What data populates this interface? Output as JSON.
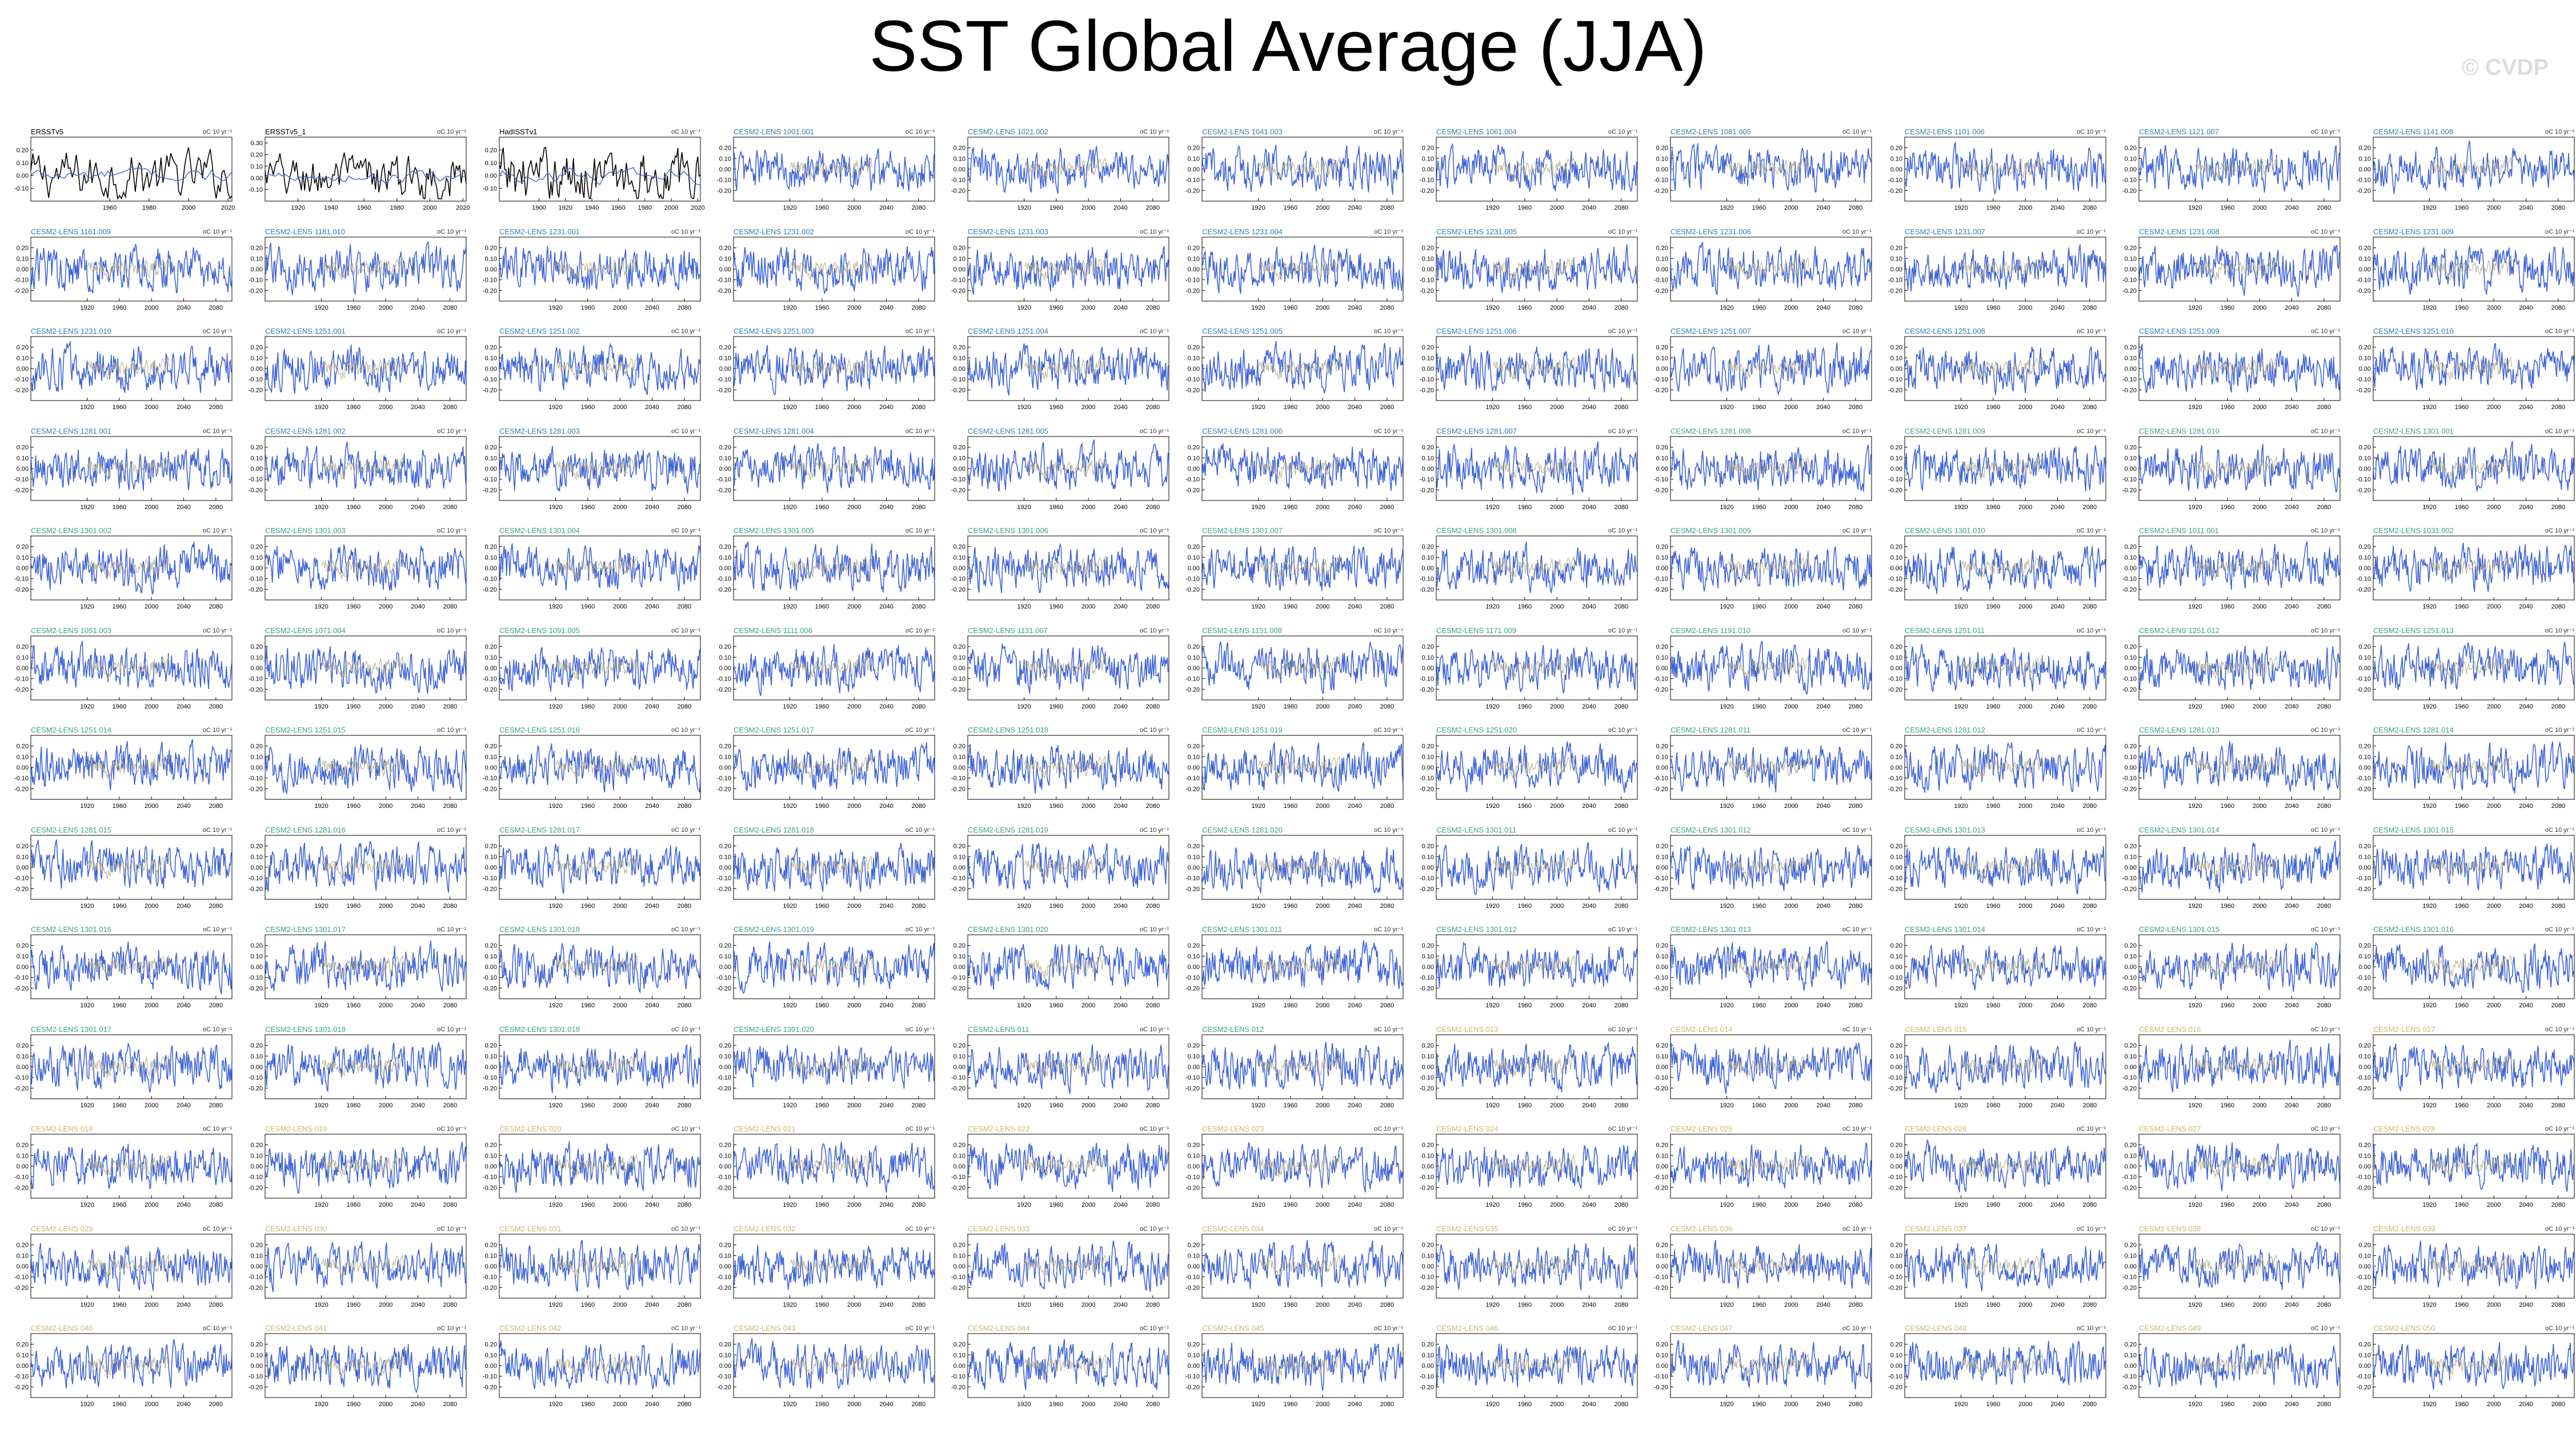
{
  "title": "SST Global Average (JJA)",
  "watermark": "© CVDP",
  "colors": {
    "series": "#3f63d6",
    "trend": "#b8b08a",
    "obs": "#000000",
    "title_obs": "#000000",
    "title_lens_1": "#2e7fb5",
    "title_lens_2": "#3aa08d",
    "title_lens_3": "#c9b86a"
  },
  "units": "oC 10 yr⁻¹",
  "chart_data": {
    "type": "line",
    "grid": false,
    "rows": 13,
    "cols": 11,
    "panels_obs": [
      {
        "name": "ERSSTv5",
        "x_range": [
          1920,
          2022
        ],
        "x_ticks": [
          1960,
          1980,
          2000,
          2020
        ],
        "y_ticks": [
          "0.20",
          "0.10",
          "0.00",
          "-0.10"
        ],
        "ylim": [
          -0.2,
          0.3
        ]
      },
      {
        "name": "ERSSTv5_1",
        "x_range": [
          1900,
          2022
        ],
        "x_ticks": [
          1920,
          1940,
          1960,
          1980,
          2000,
          2020
        ],
        "y_ticks": [
          "0.30",
          "0.20",
          "0.10",
          "0.00",
          "-0.10"
        ],
        "ylim": [
          -0.2,
          0.35
        ]
      },
      {
        "name": "HadISSTv1",
        "x_range": [
          1870,
          2022
        ],
        "x_ticks": [
          1900,
          1920,
          1940,
          1960,
          1980,
          2000,
          2020
        ],
        "y_ticks": [
          "0.20",
          "0.10",
          "0.00",
          "-0.10"
        ],
        "ylim": [
          -0.2,
          0.3
        ]
      }
    ],
    "lens": {
      "x_range": [
        1850,
        2100
      ],
      "x_ticks": [
        1920,
        1960,
        2000,
        2040,
        2080
      ],
      "y_ticks": [
        "0.20",
        "0.10",
        "0.00",
        "-0.10",
        "-0.20"
      ],
      "ylim": [
        -0.3,
        0.3
      ],
      "panels": [
        "CESM2-LENS 1001.001",
        "CESM2-LENS 1021.002",
        "CESM2-LENS 1041.003",
        "CESM2-LENS 1061.004",
        "CESM2-LENS 1081.005",
        "CESM2-LENS 1101.006",
        "CESM2-LENS 1121.007",
        "CESM2-LENS 1141.008",
        "CESM2-LENS 1161.009",
        "CESM2-LENS 1181.010",
        "CESM2-LENS 1231.001",
        "CESM2-LENS 1231.002",
        "CESM2-LENS 1231.003",
        "CESM2-LENS 1231.004",
        "CESM2-LENS 1231.005",
        "CESM2-LENS 1231.006",
        "CESM2-LENS 1231.007",
        "CESM2-LENS 1231.008",
        "CESM2-LENS 1231.009",
        "CESM2-LENS 1231.010",
        "CESM2-LENS 1251.001",
        "CESM2-LENS 1251.002",
        "CESM2-LENS 1251.003",
        "CESM2-LENS 1251.004",
        "CESM2-LENS 1251.005",
        "CESM2-LENS 1251.006",
        "CESM2-LENS 1251.007",
        "CESM2-LENS 1251.008",
        "CESM2-LENS 1251.009",
        "CESM2-LENS 1251.010",
        "CESM2-LENS 1281.001",
        "CESM2-LENS 1281.002",
        "CESM2-LENS 1281.003",
        "CESM2-LENS 1281.004",
        "CESM2-LENS 1281.005",
        "CESM2-LENS 1281.006",
        "CESM2-LENS 1281.007",
        "CESM2-LENS 1281.008",
        "CESM2-LENS 1281.009",
        "CESM2-LENS 1281.010",
        "CESM2-LENS 1301.001",
        "CESM2-LENS 1301.002",
        "CESM2-LENS 1301.003",
        "CESM2-LENS 1301.004",
        "CESM2-LENS 1301.005",
        "CESM2-LENS 1301.006",
        "CESM2-LENS 1301.007",
        "CESM2-LENS 1301.008",
        "CESM2-LENS 1301.009",
        "CESM2-LENS 1301.010",
        "CESM2-LENS 1011.001",
        "CESM2-LENS 1031.002",
        "CESM2-LENS 1051.003",
        "CESM2-LENS 1071.004",
        "CESM2-LENS 1091.005",
        "CESM2-LENS 1111.006",
        "CESM2-LENS 1131.007",
        "CESM2-LENS 1151.008",
        "CESM2-LENS 1171.009",
        "CESM2-LENS 1191.010",
        "CESM2-LENS 1251.011",
        "CESM2-LENS 1251.012",
        "CESM2-LENS 1251.013",
        "CESM2-LENS 1251.014",
        "CESM2-LENS 1251.015",
        "CESM2-LENS 1251.016",
        "CESM2-LENS 1251.017",
        "CESM2-LENS 1251.018",
        "CESM2-LENS 1251.019",
        "CESM2-LENS 1251.020",
        "CESM2-LENS 1281.011",
        "CESM2-LENS 1281.012",
        "CESM2-LENS 1281.013",
        "CESM2-LENS 1281.014",
        "CESM2-LENS 1281.015",
        "CESM2-LENS 1281.016",
        "CESM2-LENS 1281.017",
        "CESM2-LENS 1281.018",
        "CESM2-LENS 1281.019",
        "CESM2-LENS 1281.020",
        "CESM2-LENS 1301.011",
        "CESM2-LENS 1301.012",
        "CESM2-LENS 1301.013",
        "CESM2-LENS 1301.014",
        "CESM2-LENS 1301.015",
        "CESM2-LENS 1301.016",
        "CESM2-LENS 1301.017",
        "CESM2-LENS 1301.018",
        "CESM2-LENS 1301.019",
        "CESM2-LENS 1301.020",
        "CESM2-LENS 1301.011",
        "CESM2-LENS 1301.012",
        "CESM2-LENS 1301.013",
        "CESM2-LENS 1301.014",
        "CESM2-LENS 1301.015",
        "CESM2-LENS 1301.016",
        "CESM2-LENS 1301.017",
        "CESM2-LENS 1301.018",
        "CESM2-LENS 1301.019",
        "CESM2-LENS 1301.020",
        "CESM2-LENS 011",
        "CESM2-LENS 012",
        "CESM2-LENS 013",
        "CESM2-LENS 014",
        "CESM2-LENS 015",
        "CESM2-LENS 016",
        "CESM2-LENS 017",
        "CESM2-LENS 018",
        "CESM2-LENS 019",
        "CESM2-LENS 020",
        "CESM2-LENS 021",
        "CESM2-LENS 022",
        "CESM2-LENS 023",
        "CESM2-LENS 024",
        "CESM2-LENS 025",
        "CESM2-LENS 026",
        "CESM2-LENS 027",
        "CESM2-LENS 028",
        "CESM2-LENS 029",
        "CESM2-LENS 030",
        "CESM2-LENS 031",
        "CESM2-LENS 032",
        "CESM2-LENS 033",
        "CESM2-LENS 034",
        "CESM2-LENS 035",
        "CESM2-LENS 036",
        "CESM2-LENS 037",
        "CESM2-LENS 038",
        "CESM2-LENS 039",
        "CESM2-LENS 040",
        "CESM2-LENS 041",
        "CESM2-LENS 042",
        "CESM2-LENS 043",
        "CESM2-LENS 044",
        "CESM2-LENS 045",
        "CESM2-LENS 046",
        "CESM2-LENS 047",
        "CESM2-LENS 048",
        "CESM2-LENS 049",
        "CESM2-LENS 050"
      ]
    }
  }
}
